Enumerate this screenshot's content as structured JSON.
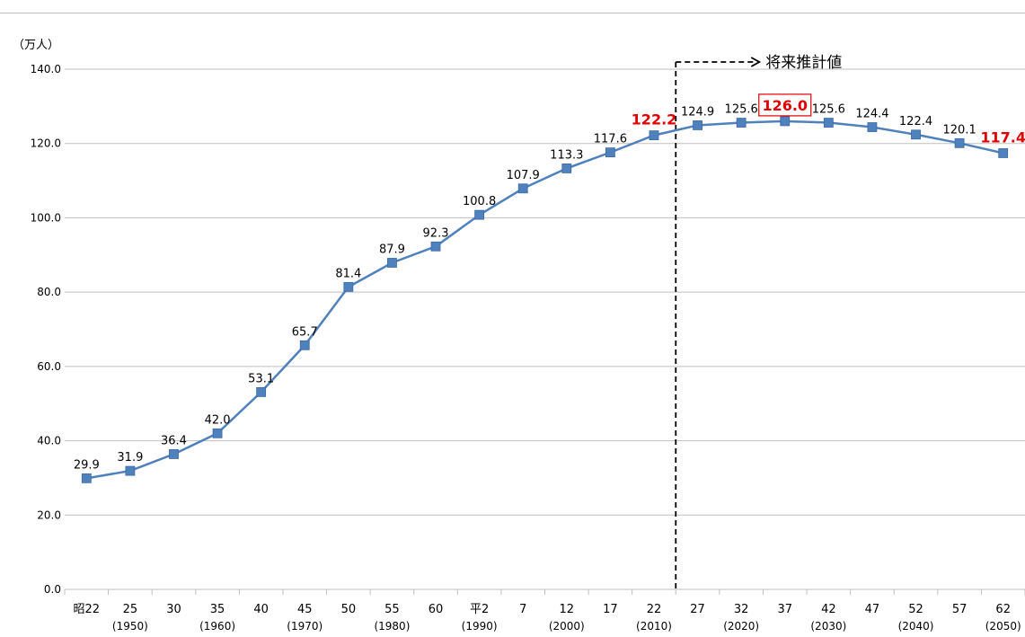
{
  "chart_data": {
    "type": "line",
    "unit_label": "（万人）",
    "ylim": [
      0,
      140
    ],
    "y_ticks": [
      "0.0",
      "20.0",
      "40.0",
      "60.0",
      "80.0",
      "100.0",
      "120.0",
      "140.0"
    ],
    "categories": [
      {
        "label": "昭22",
        "sub": ""
      },
      {
        "label": "25",
        "sub": "(1950)"
      },
      {
        "label": "30",
        "sub": ""
      },
      {
        "label": "35",
        "sub": "(1960)"
      },
      {
        "label": "40",
        "sub": ""
      },
      {
        "label": "45",
        "sub": "(1970)"
      },
      {
        "label": "50",
        "sub": ""
      },
      {
        "label": "55",
        "sub": "(1980)"
      },
      {
        "label": "60",
        "sub": ""
      },
      {
        "label": "平2",
        "sub": "(1990)"
      },
      {
        "label": "7",
        "sub": ""
      },
      {
        "label": "12",
        "sub": "(2000)"
      },
      {
        "label": "17",
        "sub": ""
      },
      {
        "label": "22",
        "sub": "(2010)"
      },
      {
        "label": "27",
        "sub": ""
      },
      {
        "label": "32",
        "sub": "(2020)"
      },
      {
        "label": "37",
        "sub": ""
      },
      {
        "label": "42",
        "sub": "(2030)"
      },
      {
        "label": "47",
        "sub": ""
      },
      {
        "label": "52",
        "sub": "(2040)"
      },
      {
        "label": "57",
        "sub": ""
      },
      {
        "label": "62",
        "sub": "(2050)"
      }
    ],
    "values": [
      29.9,
      31.9,
      36.4,
      42.0,
      53.1,
      65.7,
      81.4,
      87.9,
      92.3,
      100.8,
      107.9,
      113.3,
      117.6,
      122.2,
      124.9,
      125.6,
      126.0,
      125.6,
      124.4,
      122.4,
      120.1,
      117.4
    ],
    "data_labels": [
      "29.9",
      "31.9",
      "36.4",
      "42.0",
      "53.1",
      "65.7",
      "81.4",
      "87.9",
      "92.3",
      "100.8",
      "107.9",
      "113.3",
      "117.6",
      "122.2",
      "124.9",
      "125.6",
      "126.0",
      "125.6",
      "124.4",
      "122.4",
      "120.1",
      "117.4"
    ],
    "highlighted_indices": [
      13,
      16,
      21
    ],
    "boxed_index": 16,
    "projection_start_index": 13,
    "projection_label": "将来推計値",
    "grid": true,
    "colors": {
      "line": "#4f81bd",
      "marker": "#4f81bd",
      "highlight": "#e00000",
      "grid": "#bfbfbf",
      "axis_text": "#000000"
    }
  }
}
